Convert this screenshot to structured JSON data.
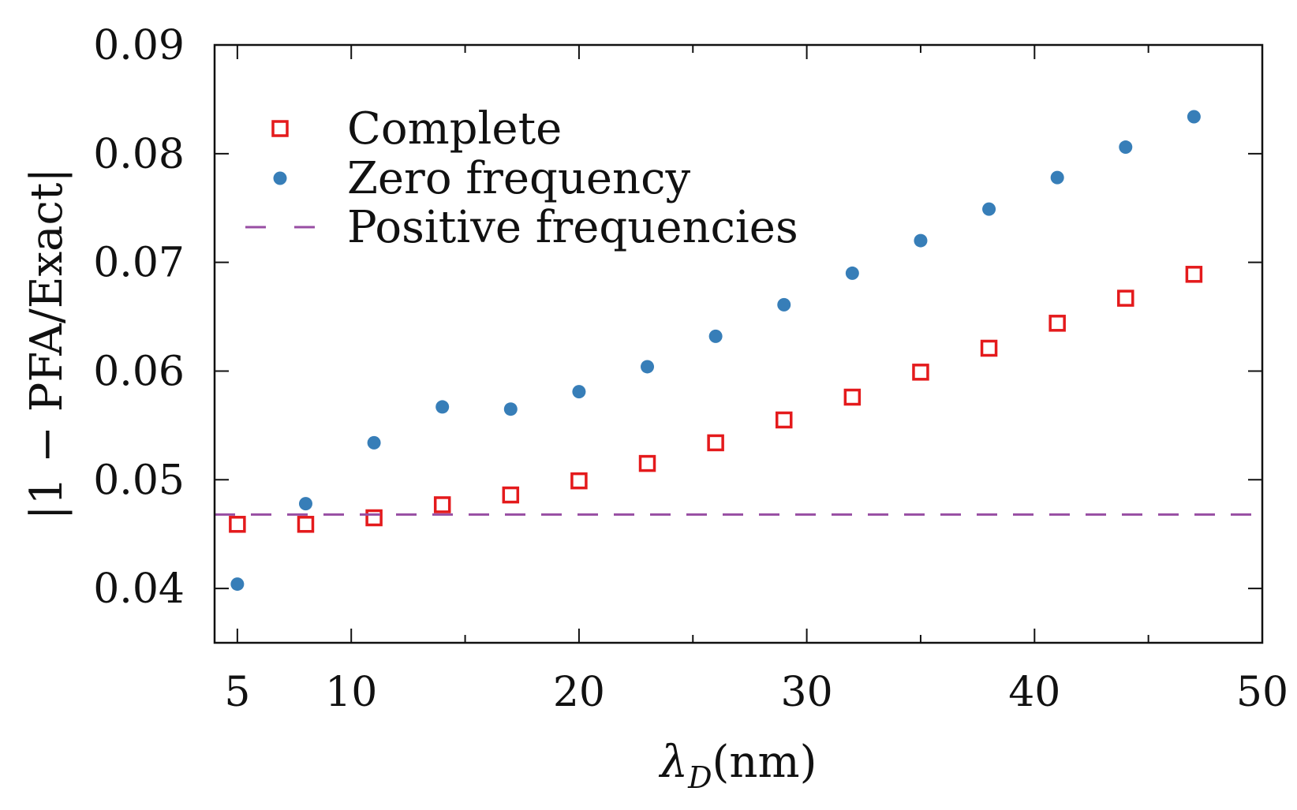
{
  "chart_data": {
    "type": "scatter",
    "title": "",
    "xlabel": "λ_D(nm)",
    "xlabel_parts": {
      "symbol": "λ",
      "subscript": "D",
      "unit": "(nm)"
    },
    "ylabel": "|1 − PFA/Exact|",
    "xlim": [
      4,
      50
    ],
    "ylim": [
      0.035,
      0.09
    ],
    "x_ticks": [
      5,
      10,
      20,
      30,
      40,
      50
    ],
    "x_tick_labels": [
      "5",
      "10",
      "20",
      "30",
      "40",
      "50"
    ],
    "x_minor_ticks": [
      15,
      25,
      35,
      45
    ],
    "y_ticks": [
      0.04,
      0.05,
      0.06,
      0.07,
      0.08,
      0.09
    ],
    "y_tick_labels": [
      "0.04",
      "0.05",
      "0.06",
      "0.07",
      "0.08",
      "0.09"
    ],
    "grid": false,
    "legend_position": "top-left",
    "series": [
      {
        "name": "Complete",
        "marker": "open-square",
        "color": "#e41a1c",
        "x": [
          5,
          8,
          11,
          14,
          17,
          20,
          23,
          26,
          29,
          32,
          35,
          38,
          41,
          44,
          47
        ],
        "values": [
          0.0459,
          0.0459,
          0.0465,
          0.0477,
          0.0486,
          0.0499,
          0.0515,
          0.0534,
          0.0555,
          0.0576,
          0.0599,
          0.0621,
          0.0644,
          0.0667,
          0.0689
        ]
      },
      {
        "name": "Zero frequency",
        "marker": "filled-circle",
        "color": "#377eb8",
        "x": [
          5,
          8,
          11,
          14,
          17,
          20,
          23,
          26,
          29,
          32,
          35,
          38,
          41,
          44,
          47
        ],
        "values": [
          0.0404,
          0.0478,
          0.0534,
          0.0567,
          0.0565,
          0.0581,
          0.0604,
          0.0632,
          0.0661,
          0.069,
          0.072,
          0.0749,
          0.0778,
          0.0806,
          0.0834
        ]
      },
      {
        "name": "Positive frequencies",
        "marker": "dashed-line",
        "color": "#984ea3",
        "constant_value": 0.0468
      }
    ]
  }
}
